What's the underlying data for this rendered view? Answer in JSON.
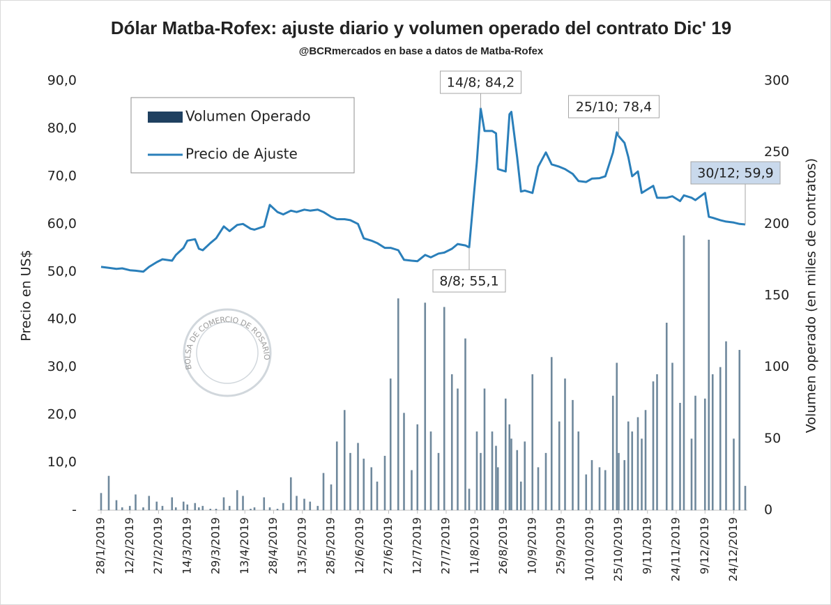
{
  "chart_data": {
    "type": "combo",
    "title": "Dólar Matba-Rofex: ajuste diario y volumen operado del contrato Dic' 19",
    "subtitle": "@BCRmercados en base a datos de Matba-Rofex",
    "ylabel": "Precio en US$",
    "y2label": "Volumen operado (en miles de contratos)",
    "watermark": "BOLSA DE COMERCIO DE ROSARIO",
    "x": [
      "28/1/2019",
      "1/2/2019",
      "5/2/2019",
      "8/2/2019",
      "12/2/2019",
      "15/2/2019",
      "19/2/2019",
      "22/2/2019",
      "26/2/2019",
      "1/3/2019",
      "6/3/2019",
      "8/3/2019",
      "12/3/2019",
      "14/3/2019",
      "18/3/2019",
      "20/3/2019",
      "22/3/2019",
      "26/3/2019",
      "29/3/2019",
      "2/4/2019",
      "5/4/2019",
      "9/4/2019",
      "12/4/2019",
      "16/4/2019",
      "18/4/2019",
      "23/4/2019",
      "26/4/2019",
      "30/4/2019",
      "3/5/2019",
      "7/5/2019",
      "10/5/2019",
      "14/5/2019",
      "17/5/2019",
      "21/5/2019",
      "24/5/2019",
      "28/5/2019",
      "31/5/2019",
      "4/6/2019",
      "7/6/2019",
      "11/6/2019",
      "14/6/2019",
      "18/6/2019",
      "21/6/2019",
      "25/6/2019",
      "28/6/2019",
      "2/7/2019",
      "5/7/2019",
      "9/7/2019",
      "12/7/2019",
      "16/7/2019",
      "19/7/2019",
      "23/7/2019",
      "26/7/2019",
      "30/7/2019",
      "2/8/2019",
      "6/8/2019",
      "8/8/2019",
      "12/8/2019",
      "14/8/2019",
      "16/8/2019",
      "20/8/2019",
      "22/8/2019",
      "23/8/2019",
      "27/8/2019",
      "29/8/2019",
      "30/8/2019",
      "2/9/2019",
      "4/9/2019",
      "6/9/2019",
      "10/9/2019",
      "13/9/2019",
      "17/9/2019",
      "20/9/2019",
      "24/9/2019",
      "27/9/2019",
      "1/10/2019",
      "4/10/2019",
      "8/10/2019",
      "11/10/2019",
      "15/10/2019",
      "18/10/2019",
      "22/10/2019",
      "24/10/2019",
      "25/10/2019",
      "28/10/2019",
      "30/10/2019",
      "1/11/2019",
      "4/11/2019",
      "6/11/2019",
      "8/11/2019",
      "12/11/2019",
      "14/11/2019",
      "19/11/2019",
      "22/11/2019",
      "26/11/2019",
      "28/11/2019",
      "2/12/2019",
      "4/12/2019",
      "9/12/2019",
      "11/12/2019",
      "13/12/2019",
      "17/12/2019",
      "20/12/2019",
      "24/12/2019",
      "27/12/2019",
      "30/12/2019"
    ],
    "series": [
      {
        "name": "Volumen Operado",
        "type": "bar",
        "axis": "y2",
        "color": "#6f889c",
        "values": [
          12,
          24,
          7,
          2,
          3,
          11,
          2,
          10,
          6,
          3,
          9,
          2,
          6,
          4,
          5,
          2,
          3,
          1,
          1,
          9,
          3,
          14,
          10,
          1,
          2,
          9,
          2,
          1,
          5,
          23,
          10,
          8,
          6,
          3,
          26,
          18,
          48,
          70,
          40,
          47,
          36,
          30,
          20,
          38,
          92,
          148,
          68,
          28,
          60,
          145,
          55,
          40,
          142,
          95,
          85,
          120,
          15,
          55,
          40,
          85,
          55,
          45,
          30,
          78,
          60,
          50,
          42,
          20,
          48,
          95,
          30,
          40,
          107,
          62,
          92,
          77,
          55,
          25,
          35,
          30,
          28,
          80,
          103,
          40,
          35,
          62,
          55,
          65,
          50,
          70,
          90,
          95,
          131,
          103,
          75,
          192,
          50,
          80,
          78,
          189,
          95,
          100,
          118,
          50,
          112,
          17
        ]
      },
      {
        "name": "Precio de Ajuste",
        "type": "line",
        "color": "#2a7fba",
        "values": [
          51.0,
          50.8,
          50.6,
          50.7,
          50.3,
          50.2,
          50.0,
          51.0,
          52.0,
          52.6,
          52.3,
          53.5,
          55.0,
          56.5,
          56.8,
          54.8,
          54.5,
          56.0,
          57.0,
          59.5,
          58.5,
          59.8,
          60.0,
          59.0,
          58.8,
          59.5,
          64.0,
          62.5,
          62.0,
          62.8,
          62.5,
          63.0,
          62.8,
          63.0,
          62.5,
          61.5,
          61.0,
          61.0,
          60.8,
          60.0,
          57.0,
          56.5,
          56.0,
          55.0,
          55.0,
          54.5,
          52.5,
          52.3,
          52.2,
          53.5,
          53.0,
          53.8,
          54.0,
          54.8,
          55.8,
          55.5,
          55.1,
          73.0,
          84.2,
          79.5,
          79.5,
          79.0,
          71.5,
          71.0,
          83.0,
          83.5,
          74.0,
          66.8,
          67.0,
          66.5,
          72.0,
          75.0,
          72.5,
          72.0,
          71.5,
          70.5,
          69.0,
          68.8,
          69.5,
          69.6,
          70.0,
          75.0,
          79.2,
          78.4,
          77.0,
          74.0,
          70.0,
          71.0,
          66.5,
          67.0,
          68.0,
          65.5,
          65.5,
          65.8,
          64.8,
          66.0,
          65.5,
          65.0,
          66.5,
          61.5,
          61.3,
          60.8,
          60.5,
          60.3,
          60.0,
          59.9
        ]
      }
    ],
    "xlim": [
      "28/1/2019",
      "30/12/2019"
    ],
    "xticks": [
      "28/1/2019",
      "12/2/2019",
      "27/2/2019",
      "14/3/2019",
      "29/3/2019",
      "13/4/2019",
      "28/4/2019",
      "13/5/2019",
      "28/5/2019",
      "12/6/2019",
      "27/6/2019",
      "12/7/2019",
      "27/7/2019",
      "11/8/2019",
      "26/8/2019",
      "10/9/2019",
      "25/9/2019",
      "10/10/2019",
      "25/10/2019",
      "9/11/2019",
      "24/11/2019",
      "9/12/2019",
      "24/12/2019"
    ],
    "ylim": [
      0,
      90
    ],
    "yticks": [
      {
        "value": 0,
        "label": "-"
      },
      {
        "value": 10,
        "label": "10,0"
      },
      {
        "value": 20,
        "label": "20,0"
      },
      {
        "value": 30,
        "label": "30,0"
      },
      {
        "value": 40,
        "label": "40,0"
      },
      {
        "value": 50,
        "label": "50,0"
      },
      {
        "value": 60,
        "label": "60,0"
      },
      {
        "value": 70,
        "label": "70,0"
      },
      {
        "value": 80,
        "label": "80,0"
      },
      {
        "value": 90,
        "label": "90,0"
      }
    ],
    "y2lim": [
      0,
      300
    ],
    "y2ticks": [
      0,
      50,
      100,
      150,
      200,
      250,
      300
    ],
    "annotations": [
      {
        "label": "14/8; 84,2",
        "x": "14/8/2019",
        "y": 84.2
      },
      {
        "label": "8/8; 55,1",
        "x": "8/8/2019",
        "y": 55.1
      },
      {
        "label": "25/10; 78,4",
        "x": "25/10/2019",
        "y": 78.4
      },
      {
        "label": "30/12; 59,9",
        "x": "30/12/2019",
        "y": 59.9
      }
    ],
    "legend": "upper left"
  }
}
